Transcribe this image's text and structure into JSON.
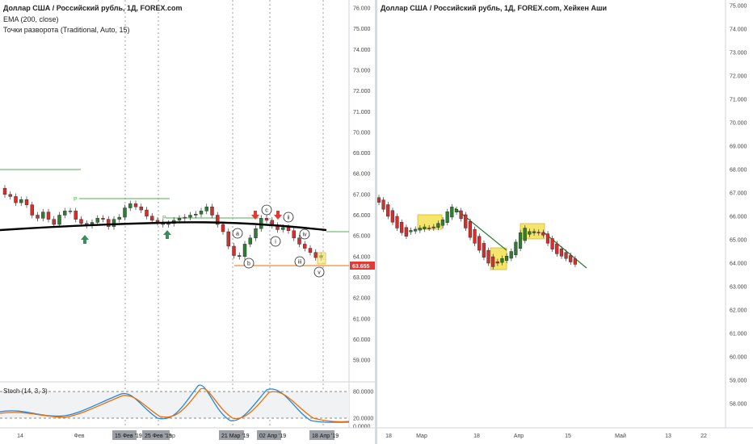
{
  "left": {
    "title": "Доллар США / Российский рубль, 1Д, FOREX.com",
    "indicators": [
      "EMA (200, close)",
      "Точки разворота (Traditional, Auto, 15)"
    ],
    "price_axis": [
      "76.000",
      "75.000",
      "74.000",
      "73.000",
      "72.000",
      "71.000",
      "70.000",
      "69.000",
      "68.000",
      "67.000",
      "66.000",
      "65.000",
      "64.000",
      "63.000",
      "62.000",
      "61.000",
      "60.000",
      "59.000"
    ],
    "last_price": "63.655",
    "pivot_label": "P",
    "wave_labels": [
      "a",
      "b",
      "c",
      "i",
      "ii",
      "iii",
      "iv",
      "v"
    ],
    "oscillator": {
      "label": "Stoch (14, 3, 3)",
      "axis": [
        "80.0000",
        "20.0000",
        "0.0000"
      ]
    },
    "time_axis": [
      "14",
      "Фев",
      "Мар"
    ],
    "date_tags": [
      "15 Фев '19",
      "25 Фев '19",
      "21 Мар '19",
      "02 Апр '19",
      "18 Апр '19"
    ],
    "colors": {
      "up": "#2e7d32",
      "down": "#d32f2f",
      "ema": "#000000",
      "pivot": "#4caf50",
      "price_tag": "#e53935",
      "stoch_k": "#1e88e5",
      "stoch_d": "#ef6c00",
      "arrow_up": "#3d8b5c",
      "arrow_down": "#e53935"
    }
  },
  "right": {
    "title": "Доллар США / Российский рубль, 1Д, FOREX.com, Хейкен Аши",
    "price_axis": [
      "75.000",
      "74.000",
      "73.000",
      "72.000",
      "71.000",
      "70.000",
      "69.000",
      "68.000",
      "67.000",
      "66.000",
      "65.000",
      "64.000",
      "63.000",
      "62.000",
      "61.000",
      "60.000",
      "59.000",
      "58.000"
    ],
    "time_axis": [
      "18",
      "Мар",
      "18",
      "Апр",
      "15",
      "Май",
      "13",
      "22"
    ],
    "colors": {
      "up": "#2e7d32",
      "down": "#d32f2f",
      "box": "#f5e56b",
      "trend": "#2e7d32"
    }
  }
}
